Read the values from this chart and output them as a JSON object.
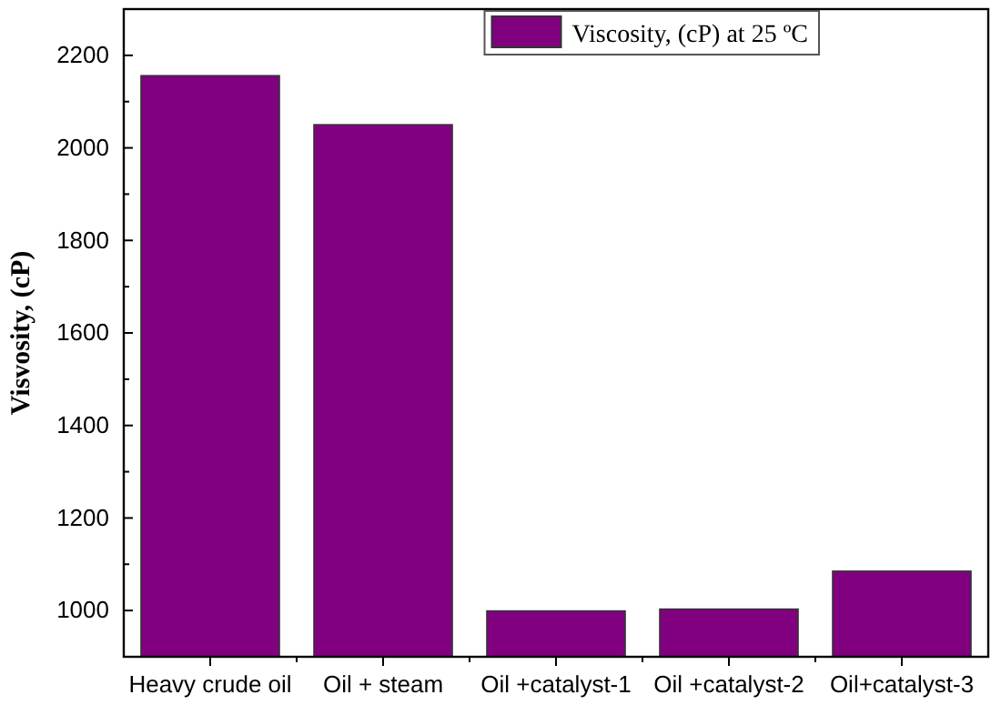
{
  "chart_data": {
    "type": "bar",
    "ylabel": "Visvosity,  (cP)",
    "categories": [
      "Heavy crude oil",
      "Oil + steam",
      "Oil +catalyst-1",
      "Oil +catalyst-2",
      "Oil+catalyst-3"
    ],
    "series": [
      {
        "name": "Viscosity, (cP) at 25 ºC",
        "color": "#800080",
        "values": [
          2156,
          2050,
          999,
          1003,
          1085
        ]
      }
    ],
    "ylim": [
      900,
      2300
    ],
    "yticks": [
      1000,
      1200,
      1400,
      1600,
      1800,
      2000,
      2200
    ],
    "legend": "top right",
    "grid": false
  }
}
